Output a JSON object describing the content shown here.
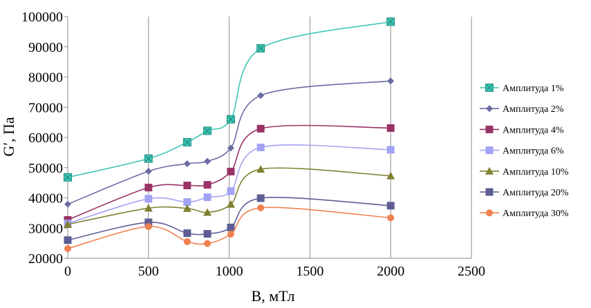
{
  "chart_data": {
    "type": "line",
    "title": "",
    "xlabel": "B, мТл",
    "ylabel": "G′, Па",
    "xlim": [
      0,
      2500
    ],
    "ylim": [
      20000,
      100000
    ],
    "xticks": [
      "0",
      "500",
      "1000",
      "1500",
      "2000",
      "2500"
    ],
    "yticks": [
      "20000",
      "30000",
      "40000",
      "50000",
      "60000",
      "70000",
      "80000",
      "90000",
      "100000"
    ],
    "grid": "vertical major",
    "legend_position": "right",
    "x": [
      0,
      500,
      740,
      865,
      1010,
      1195,
      2000
    ],
    "series": [
      {
        "name": "Амплитуда 1%",
        "color": "#3cc6b4",
        "marker": "square-x",
        "values": [
          46800,
          53000,
          58400,
          62200,
          66000,
          89500,
          98300
        ]
      },
      {
        "name": "Амплитуда 2%",
        "color": "#6b6ba4",
        "marker": "diamond",
        "values": [
          37900,
          48800,
          51300,
          52100,
          56500,
          73900,
          78700
        ]
      },
      {
        "name": "Амплитуда 4%",
        "color": "#993366",
        "marker": "square",
        "values": [
          32700,
          43400,
          44100,
          44300,
          48700,
          62900,
          63100
        ]
      },
      {
        "name": "Амплитуда 6%",
        "color": "#a3a3f5",
        "marker": "square",
        "values": [
          31500,
          39700,
          38600,
          40200,
          42200,
          56700,
          55900
        ]
      },
      {
        "name": "Амплитуда 10%",
        "color": "#808033",
        "marker": "triangle",
        "values": [
          31200,
          36600,
          36500,
          35200,
          37900,
          49500,
          47300
        ]
      },
      {
        "name": "Амплитуда 20%",
        "color": "#5e5e94",
        "marker": "square",
        "values": [
          26000,
          31900,
          28300,
          28100,
          30200,
          39900,
          37400
        ]
      },
      {
        "name": "Амплитуда 30%",
        "color": "#f08050",
        "marker": "circle",
        "values": [
          23200,
          30500,
          25500,
          24900,
          28000,
          36700,
          33400
        ]
      }
    ]
  }
}
